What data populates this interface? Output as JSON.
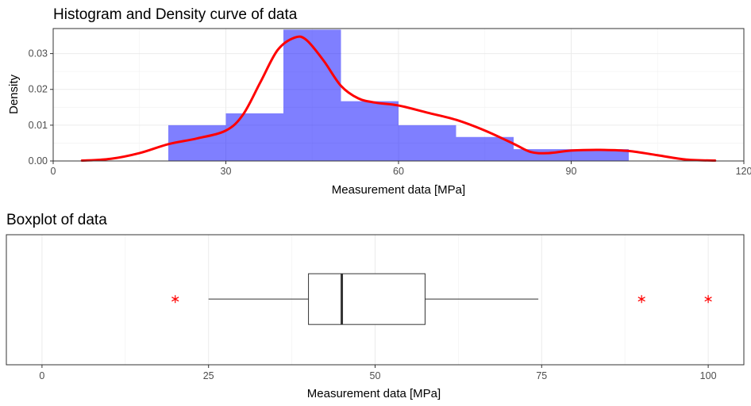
{
  "colors": {
    "bar_fill": "#0000ff",
    "bar_opacity": 0.5,
    "density_line": "#ff0000",
    "outlier": "#ff0000",
    "box_stroke": "#333333"
  },
  "chart_data": [
    {
      "type": "bar",
      "subtype": "histogram_with_density",
      "title": "Histogram and Density curve of data",
      "xlabel": "Measurement data [MPa]",
      "ylabel": "Density",
      "xlim": [
        0,
        120
      ],
      "ylim": [
        0,
        0.037
      ],
      "x_ticks": [
        0,
        30,
        60,
        90,
        120
      ],
      "y_ticks": [
        0.0,
        0.01,
        0.02,
        0.03
      ],
      "x_tick_labels": [
        "0",
        "30",
        "60",
        "90",
        "120"
      ],
      "y_tick_labels": [
        "0.00",
        "0.01",
        "0.02",
        "0.03"
      ],
      "grid": true,
      "bins": [
        {
          "x0": 20,
          "x1": 30,
          "density": 0.01
        },
        {
          "x0": 30,
          "x1": 40,
          "density": 0.0133
        },
        {
          "x0": 40,
          "x1": 50,
          "density": 0.0367
        },
        {
          "x0": 50,
          "x1": 60,
          "density": 0.0167
        },
        {
          "x0": 60,
          "x1": 70,
          "density": 0.01
        },
        {
          "x0": 70,
          "x1": 80,
          "density": 0.0067
        },
        {
          "x0": 80,
          "x1": 90,
          "density": 0.0033
        },
        {
          "x0": 90,
          "x1": 100,
          "density": 0.0033
        }
      ],
      "density_curve": {
        "x": [
          5,
          10,
          15,
          20,
          25,
          30,
          33,
          36,
          39,
          42,
          44,
          47,
          50,
          53,
          56,
          60,
          65,
          70,
          75,
          80,
          83,
          86,
          90,
          95,
          100,
          105,
          110,
          115
        ],
        "y": [
          0.0001,
          0.0006,
          0.0022,
          0.0047,
          0.0063,
          0.0085,
          0.013,
          0.022,
          0.031,
          0.0345,
          0.0338,
          0.028,
          0.021,
          0.0175,
          0.0163,
          0.0155,
          0.0135,
          0.0115,
          0.0085,
          0.0048,
          0.0025,
          0.0022,
          0.0029,
          0.0031,
          0.0028,
          0.0016,
          0.0004,
          0.0001
        ]
      }
    },
    {
      "type": "boxplot",
      "title": "Boxplot of data",
      "xlabel": "Measurement data [MPa]",
      "xlim": [
        0,
        100
      ],
      "x_ticks": [
        0,
        25,
        50,
        75,
        100
      ],
      "x_tick_labels": [
        "0",
        "25",
        "50",
        "75",
        "100"
      ],
      "grid": true,
      "stats": {
        "whisker_low": 25,
        "q1": 40,
        "median": 45,
        "q3": 57.5,
        "whisker_high": 74.5
      },
      "outliers": [
        20,
        90,
        100
      ]
    }
  ]
}
